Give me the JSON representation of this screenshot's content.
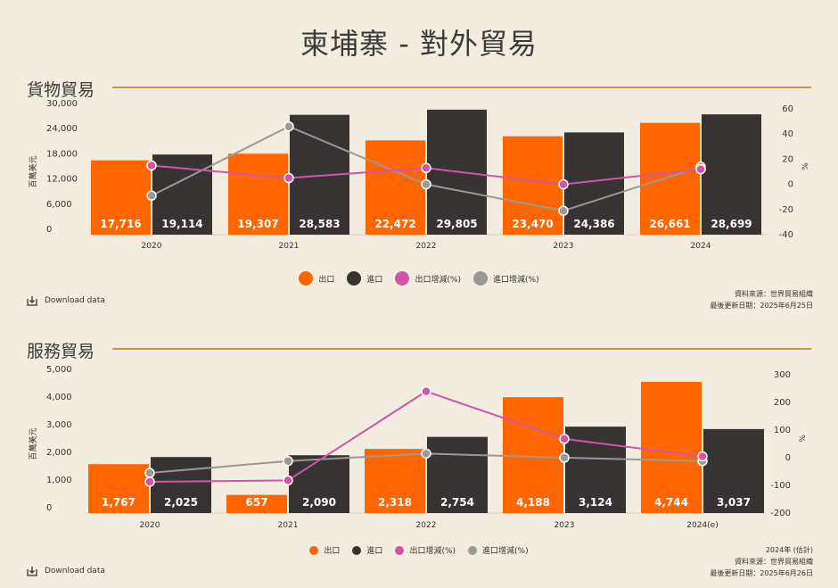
{
  "title": "柬埔寨 - 對外貿易",
  "sections": [
    {
      "title": "貨物貿易",
      "legend": [
        "出口",
        "進口",
        "出口增減(%)",
        "進口增減(%)"
      ],
      "download": "Download data",
      "source": [
        "資料來源：世界貿易組織",
        "最後更新日期：2025年6月25日"
      ]
    },
    {
      "title": "服務貿易",
      "legend": [
        "出口",
        "進口",
        "出口增減(%)",
        "進口增減(%)"
      ],
      "download": "Download data",
      "source": [
        "2024年 (估計)",
        "資料來源：世界貿易組織",
        "最後更新日期：2025年6月26日"
      ]
    }
  ],
  "colors": {
    "export": "#ff6600",
    "import": "#383333",
    "export_growth": "#d154a8",
    "import_growth": "#999999",
    "rule": "#c9983d",
    "background": "#f2ede0"
  },
  "icons": [
    "download-icon"
  ],
  "chart_data": [
    {
      "type": "bar",
      "title": "貨物貿易",
      "categories": [
        "2020",
        "2021",
        "2022",
        "2023",
        "2024"
      ],
      "ylabel": "百萬美元",
      "ylim": [
        0,
        30000
      ],
      "y_ticks": [
        "0",
        "6,000",
        "12,000",
        "18,000",
        "24,000",
        "30,000"
      ],
      "y2label": "%",
      "y2lim": [
        -40,
        60
      ],
      "y2_ticks": [
        "-40",
        "-20",
        "0",
        "20",
        "40",
        "60"
      ],
      "series": [
        {
          "name": "出口",
          "kind": "bar",
          "values": [
            17716,
            19307,
            22472,
            23470,
            26661
          ],
          "labels": [
            "17,716",
            "19,307",
            "22,472",
            "23,470",
            "26,661"
          ]
        },
        {
          "name": "進口",
          "kind": "bar",
          "values": [
            19114,
            28583,
            29805,
            24386,
            28699
          ],
          "labels": [
            "19,114",
            "28,583",
            "29,805",
            "24,386",
            "28,699"
          ]
        },
        {
          "name": "出口增減(%)",
          "kind": "line",
          "axis": "right",
          "values": [
            15,
            5,
            13,
            0,
            12
          ]
        },
        {
          "name": "進口增減(%)",
          "kind": "line",
          "axis": "right",
          "values": [
            -9,
            46,
            0,
            -21,
            14
          ]
        }
      ],
      "grid": false,
      "legend_position": "bottom"
    },
    {
      "type": "bar",
      "title": "服務貿易",
      "categories": [
        "2020",
        "2021",
        "2022",
        "2023",
        "2024(e)"
      ],
      "ylabel": "百萬美元",
      "ylim": [
        0,
        5000
      ],
      "y_ticks": [
        "0",
        "1,000",
        "2,000",
        "3,000",
        "4,000",
        "5,000"
      ],
      "y2label": "%",
      "y2lim": [
        -200,
        300
      ],
      "y2_ticks": [
        "-200",
        "-100",
        "0",
        "100",
        "200",
        "300"
      ],
      "series": [
        {
          "name": "出口",
          "kind": "bar",
          "values": [
            1767,
            657,
            2318,
            4188,
            4744
          ],
          "labels": [
            "1,767",
            "657",
            "2,318",
            "4,188",
            "4,744"
          ]
        },
        {
          "name": "進口",
          "kind": "bar",
          "values": [
            2025,
            2090,
            2754,
            3124,
            3037
          ],
          "labels": [
            "2,025",
            "2,090",
            "2,754",
            "3,124",
            "3,037"
          ]
        },
        {
          "name": "出口增減(%)",
          "kind": "line",
          "axis": "right",
          "values": [
            -87,
            -82,
            240,
            68,
            5
          ]
        },
        {
          "name": "進口增減(%)",
          "kind": "line",
          "axis": "right",
          "values": [
            -55,
            -12,
            15,
            0,
            -12
          ]
        }
      ],
      "grid": false,
      "legend_position": "bottom"
    }
  ]
}
